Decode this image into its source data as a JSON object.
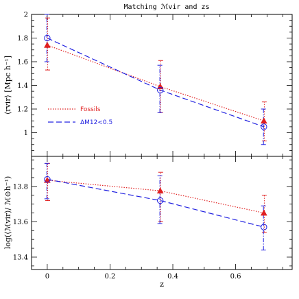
{
  "chart_data": [
    {
      "type": "line",
      "title": "Matching ℳvir and zs",
      "ylabel": "⟨rvir⟩ [Mpc h⁻¹]",
      "xlabel": "",
      "xlim": [
        -0.05,
        0.78
      ],
      "ylim": [
        0.8,
        2.0
      ],
      "yticks": [
        "1",
        "1.2",
        "1.4",
        "1.6",
        "1.8",
        "2"
      ],
      "ytick_values": [
        1.0,
        1.2,
        1.4,
        1.6,
        1.8,
        2.0
      ],
      "legend_position": "lower-left",
      "series": [
        {
          "name": "Fossils",
          "color": "#e02020",
          "line_style": "dotted",
          "marker": "filled-triangle",
          "x": [
            0.0,
            0.36,
            0.69
          ],
          "y": [
            1.74,
            1.39,
            1.1
          ],
          "err_low": [
            1.53,
            1.17,
            0.93
          ],
          "err_high": [
            1.97,
            1.61,
            1.26
          ]
        },
        {
          "name": "ΔM12<0.5",
          "color": "#2020e0",
          "line_style": "dashed",
          "marker": "open-circle",
          "x": [
            0.0,
            0.36,
            0.69
          ],
          "y": [
            1.8,
            1.36,
            1.05
          ],
          "err_low": [
            1.6,
            1.17,
            0.9
          ],
          "err_high": [
            2.0,
            1.57,
            1.2
          ]
        }
      ]
    },
    {
      "type": "line",
      "title": "",
      "ylabel": "log(⟨ℳvir⟩/ ℳ⊙h⁻¹)",
      "xlabel": "z",
      "xlim": [
        -0.05,
        0.78
      ],
      "ylim": [
        13.33,
        13.97
      ],
      "yticks": [
        "13.4",
        "13.6",
        "13.8"
      ],
      "ytick_values": [
        13.4,
        13.6,
        13.8
      ],
      "xticks": [
        "0",
        "0.2",
        "0.4",
        "0.6"
      ],
      "xtick_values": [
        0.0,
        0.2,
        0.4,
        0.6
      ],
      "series": [
        {
          "name": "Fossils",
          "color": "#e02020",
          "line_style": "dotted",
          "marker": "filled-triangle",
          "x": [
            0.0,
            0.36,
            0.69
          ],
          "y": [
            13.835,
            13.775,
            13.65
          ],
          "err_low": [
            13.72,
            13.6,
            13.54
          ],
          "err_high": [
            13.93,
            13.88,
            13.75
          ]
        },
        {
          "name": "ΔM12<0.5",
          "color": "#2020e0",
          "line_style": "dashed",
          "marker": "open-circle",
          "x": [
            0.0,
            0.36,
            0.69
          ],
          "y": [
            13.84,
            13.72,
            13.57
          ],
          "err_low": [
            13.73,
            13.59,
            13.44
          ],
          "err_high": [
            13.93,
            13.86,
            13.69
          ]
        }
      ]
    }
  ]
}
